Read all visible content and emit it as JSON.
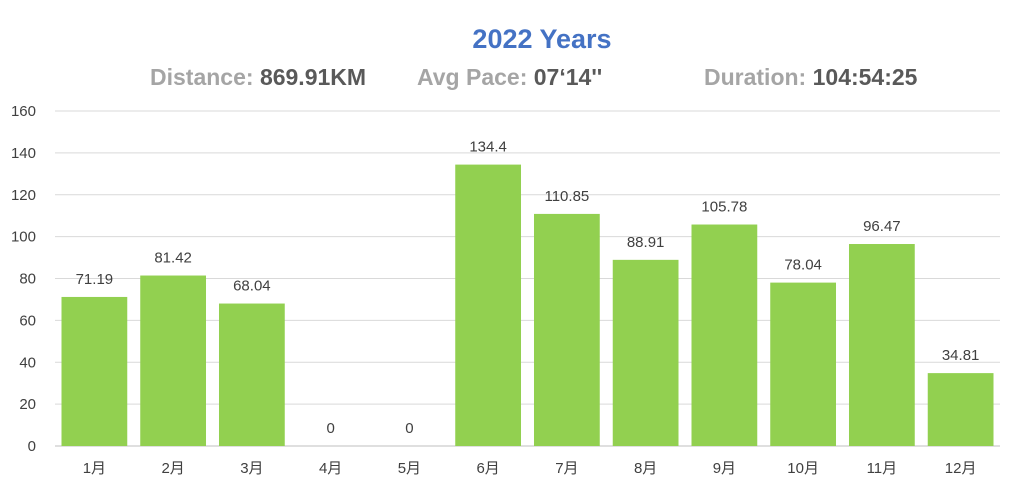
{
  "header": {
    "title": "2022 Years",
    "distance_label": "Distance:",
    "distance_value": "869.91KM",
    "pace_label": "Avg Pace:",
    "pace_value": "07‘14''",
    "duration_label": "Duration:",
    "duration_value": "104:54:25"
  },
  "colors": {
    "bar": "#92d050",
    "title": "#4472c4",
    "stat_label": "#a5a5a5",
    "stat_value": "#595959",
    "grid": "#d9d9d9"
  },
  "chart_data": {
    "type": "bar",
    "title": "2022 Years",
    "categories": [
      "1月",
      "2月",
      "3月",
      "4月",
      "5月",
      "6月",
      "7月",
      "8月",
      "9月",
      "10月",
      "11月",
      "12月"
    ],
    "values": [
      71.19,
      81.42,
      68.04,
      0,
      0,
      134.4,
      110.85,
      88.91,
      105.78,
      78.04,
      96.47,
      34.81
    ],
    "data_labels": [
      "71.19",
      "81.42",
      "68.04",
      "0",
      "0",
      "134.4",
      "110.85",
      "88.91",
      "105.78",
      "78.04",
      "96.47",
      "34.81"
    ],
    "ylim": [
      0,
      160
    ],
    "yticks": [
      0,
      20,
      40,
      60,
      80,
      100,
      120,
      140,
      160
    ],
    "grid": true,
    "legend": "none"
  }
}
